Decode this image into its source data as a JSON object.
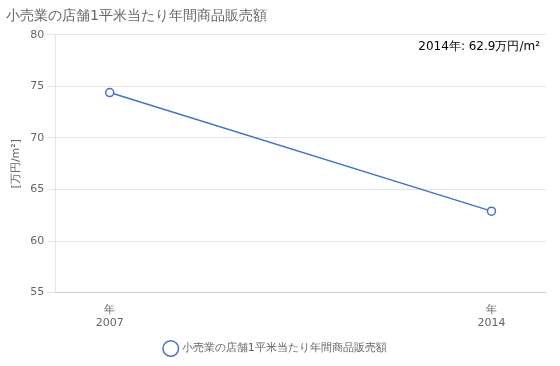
{
  "chart_data": {
    "type": "line",
    "title": "小売業の店舗1平米当たり年間商品販売額",
    "ylabel": "[万円/m²]",
    "annotation": "2014年: 62.9万円/m²",
    "x": [
      2007,
      2014
    ],
    "xlim": [
      2006,
      2015
    ],
    "xticks": [
      {
        "value": 2007,
        "label": "年\n2007"
      },
      {
        "value": 2014,
        "label": "年\n2014"
      }
    ],
    "series": [
      {
        "name": "小売業の店舗1平米当たり年間商品販売額",
        "color": "#4472C4",
        "values": [
          74.4,
          62.9
        ],
        "marker": "circle",
        "line_style": "solid"
      }
    ],
    "ylim": [
      55,
      80
    ],
    "yticks": [
      55,
      60,
      65,
      70,
      75,
      80
    ],
    "grid": "y",
    "legend": "bottom"
  }
}
